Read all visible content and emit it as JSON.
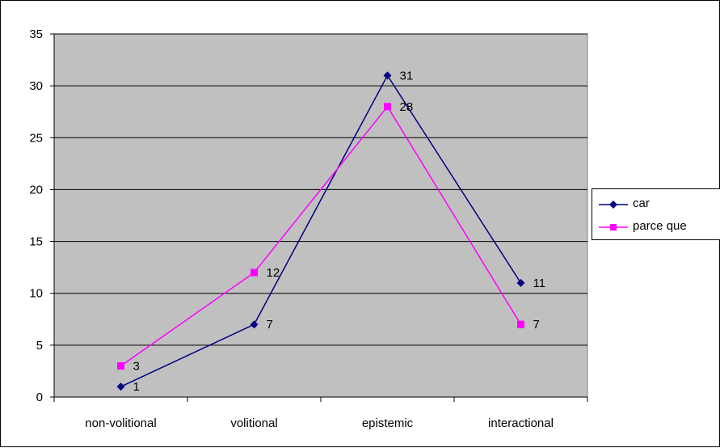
{
  "chart_data": {
    "type": "line",
    "categories": [
      "non-volitional",
      "volitional",
      "epistemic",
      "interactional"
    ],
    "series": [
      {
        "name": "car",
        "values": [
          1,
          7,
          31,
          11
        ],
        "color": "#000080",
        "marker": "diamond"
      },
      {
        "name": "parce que",
        "values": [
          3,
          12,
          28,
          7
        ],
        "color": "#FF00FF",
        "marker": "square"
      }
    ],
    "ylim": [
      0,
      35
    ],
    "yticks": [
      0,
      5,
      10,
      15,
      20,
      25,
      30,
      35
    ],
    "grid": true,
    "legend": "right",
    "plot_background": "#C0C0C0",
    "data_labels": true
  }
}
